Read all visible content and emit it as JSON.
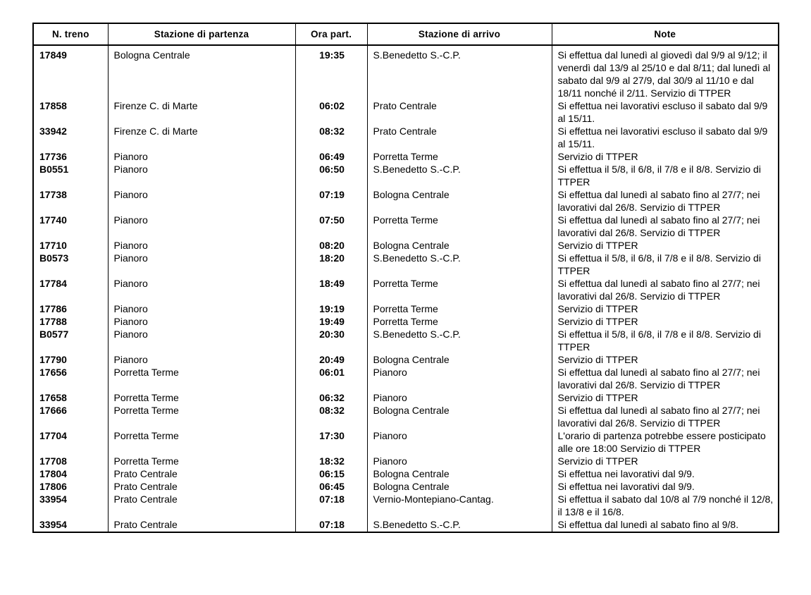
{
  "document": {
    "background_color": "#ffffff",
    "text_color": "#000000",
    "border_color": "#000000",
    "kind": "train-timetable"
  },
  "table": {
    "columns": [
      {
        "label": "N. treno"
      },
      {
        "label": "Stazione di partenza"
      },
      {
        "label": "Ora part."
      },
      {
        "label": "Stazione di arrivo"
      },
      {
        "label": "Note"
      }
    ],
    "rows": [
      {
        "train": "17849",
        "departure_station": "Bologna Centrale",
        "departure_time": "19:35",
        "arrival_station": "S.Benedetto S.-C.P.",
        "note": "Si effettua dal lunedì al giovedì dal 9/9 al 9/12; il venerdì dal 13/9 al 25/10 e dal 8/11; dal lunedì al sabato dal 9/9 al 27/9, dal 30/9 al 11/10 e dal 18/11 nonché il 2/11. Servizio di TTPER"
      },
      {
        "train": "17858",
        "departure_station": "Firenze C. di Marte",
        "departure_time": "06:02",
        "arrival_station": "Prato Centrale",
        "note": "Si effettua nei lavorativi escluso il sabato dal 9/9 al 15/11."
      },
      {
        "train": "33942",
        "departure_station": "Firenze C. di Marte",
        "departure_time": "08:32",
        "arrival_station": "Prato Centrale",
        "note": "Si effettua nei lavorativi escluso il sabato dal 9/9 al 15/11."
      },
      {
        "train": "17736",
        "departure_station": "Pianoro",
        "departure_time": "06:49",
        "arrival_station": "Porretta Terme",
        "note": "Servizio di TTPER"
      },
      {
        "train": "B0551",
        "departure_station": "Pianoro",
        "departure_time": "06:50",
        "arrival_station": "S.Benedetto S.-C.P.",
        "note": "Si effettua il 5/8, il 6/8, il 7/8 e il 8/8. Servizio di TTPER"
      },
      {
        "train": "17738",
        "departure_station": "Pianoro",
        "departure_time": "07:19",
        "arrival_station": "Bologna Centrale",
        "note": "Si effettua dal lunedì al sabato fino al 27/7; nei lavorativi dal 26/8. Servizio di TTPER"
      },
      {
        "train": "17740",
        "departure_station": "Pianoro",
        "departure_time": "07:50",
        "arrival_station": "Porretta Terme",
        "note": "Si effettua dal lunedì al sabato fino al 27/7; nei lavorativi dal 26/8. Servizio di TTPER"
      },
      {
        "train": "17710",
        "departure_station": "Pianoro",
        "departure_time": "08:20",
        "arrival_station": "Bologna Centrale",
        "note": "Servizio di TTPER"
      },
      {
        "train": "B0573",
        "departure_station": "Pianoro",
        "departure_time": "18:20",
        "arrival_station": "S.Benedetto S.-C.P.",
        "note": "Si effettua il 5/8, il 6/8, il 7/8 e il 8/8. Servizio di TTPER"
      },
      {
        "train": "17784",
        "departure_station": "Pianoro",
        "departure_time": "18:49",
        "arrival_station": "Porretta Terme",
        "note": "Si effettua dal lunedì al sabato fino al 27/7; nei lavorativi dal 26/8. Servizio di TTPER"
      },
      {
        "train": "17786",
        "departure_station": "Pianoro",
        "departure_time": "19:19",
        "arrival_station": "Porretta Terme",
        "note": "Servizio di TTPER"
      },
      {
        "train": "17788",
        "departure_station": "Pianoro",
        "departure_time": "19:49",
        "arrival_station": "Porretta Terme",
        "note": "Servizio di TTPER"
      },
      {
        "train": "B0577",
        "departure_station": "Pianoro",
        "departure_time": "20:30",
        "arrival_station": "S.Benedetto S.-C.P.",
        "note": "Si effettua il 5/8, il 6/8, il 7/8 e il 8/8. Servizio di TTPER"
      },
      {
        "train": "17790",
        "departure_station": "Pianoro",
        "departure_time": "20:49",
        "arrival_station": "Bologna Centrale",
        "note": "Servizio di TTPER"
      },
      {
        "train": "17656",
        "departure_station": "Porretta Terme",
        "departure_time": "06:01",
        "arrival_station": "Pianoro",
        "note": "Si effettua dal lunedì al sabato fino al 27/7; nei lavorativi dal 26/8. Servizio di TTPER"
      },
      {
        "train": "17658",
        "departure_station": "Porretta Terme",
        "departure_time": "06:32",
        "arrival_station": "Pianoro",
        "note": "Servizio di TTPER"
      },
      {
        "train": "17666",
        "departure_station": "Porretta Terme",
        "departure_time": "08:32",
        "arrival_station": "Bologna Centrale",
        "note": "Si effettua dal lunedì al sabato fino al 27/7; nei lavorativi dal 26/8. Servizio di TTPER"
      },
      {
        "train": "17704",
        "departure_station": "Porretta Terme",
        "departure_time": "17:30",
        "arrival_station": "Pianoro",
        "note": "L'orario di partenza potrebbe essere posticipato alle ore 18:00 Servizio di TTPER"
      },
      {
        "train": "17708",
        "departure_station": "Porretta Terme",
        "departure_time": "18:32",
        "arrival_station": "Pianoro",
        "note": "Servizio di TTPER"
      },
      {
        "train": "17804",
        "departure_station": "Prato Centrale",
        "departure_time": "06:15",
        "arrival_station": "Bologna Centrale",
        "note": "Si effettua nei lavorativi dal 9/9."
      },
      {
        "train": "17806",
        "departure_station": "Prato Centrale",
        "departure_time": "06:45",
        "arrival_station": "Bologna Centrale",
        "note": "Si effettua nei lavorativi dal 9/9."
      },
      {
        "train": "33954",
        "departure_station": "Prato Centrale",
        "departure_time": "07:18",
        "arrival_station": "Vernio-Montepiano-Cantag.",
        "note": "Si effettua il sabato dal 10/8 al 7/9 nonché il 12/8, il 13/8 e il 16/8."
      },
      {
        "train": "33954",
        "departure_station": "Prato Centrale",
        "departure_time": "07:18",
        "arrival_station": "S.Benedetto S.-C.P.",
        "note": "Si effettua dal lunedì al sabato fino al 9/8."
      }
    ]
  }
}
